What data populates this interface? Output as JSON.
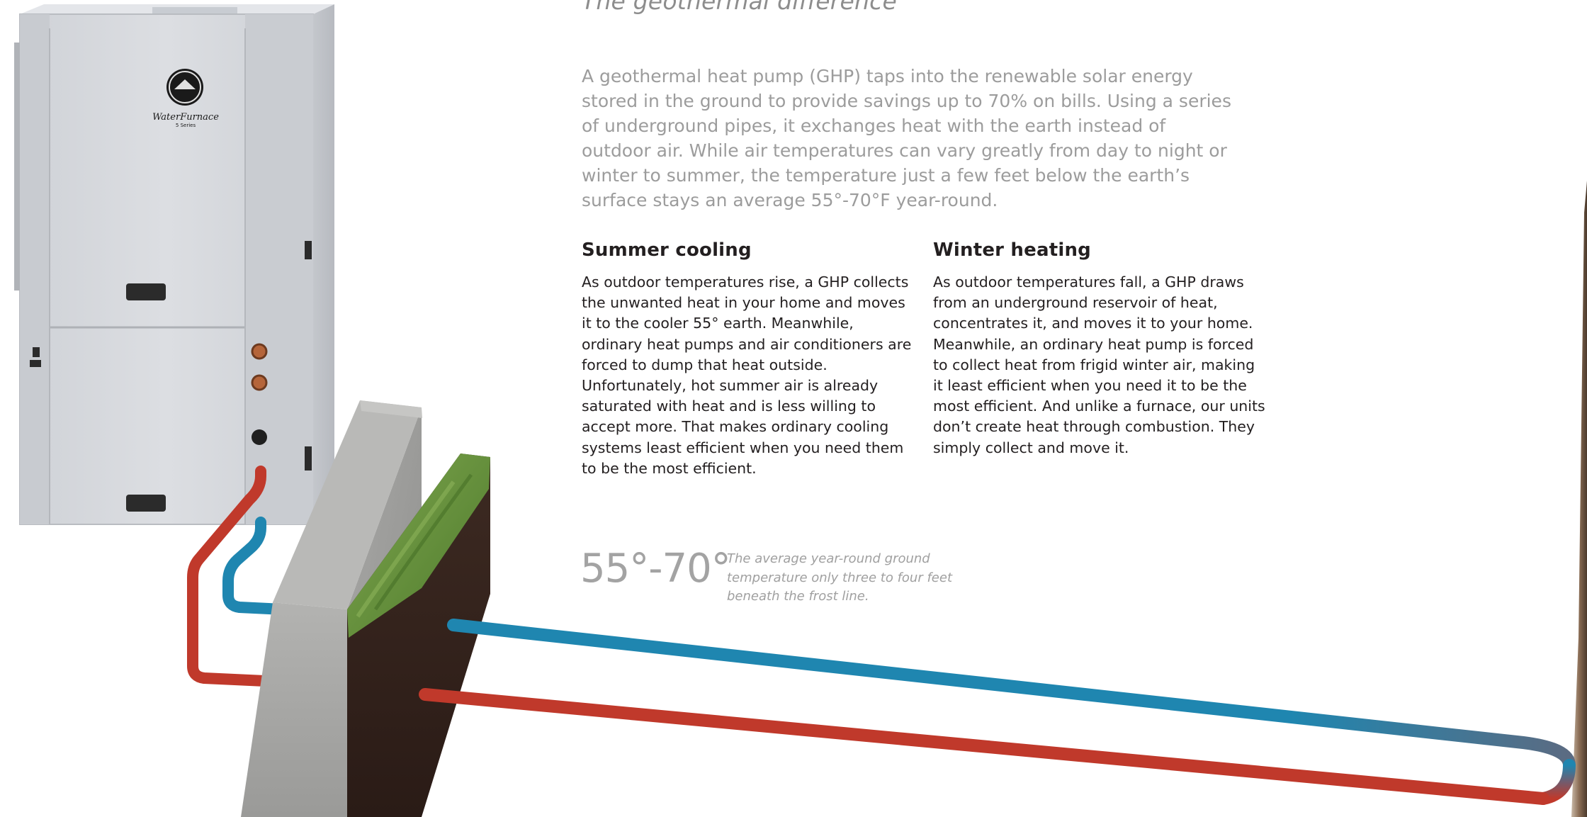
{
  "heading": "The geothermal difference",
  "intro": "A geothermal heat pump (GHP) taps into the renewable solar energy stored in the ground to provide savings up to 70% on bills. Using a series of underground pipes, it exchanges heat with the earth instead of outdoor air. While air temperatures can vary greatly from day to night or winter to summer, the temperature just a few feet below the earth’s surface stays an average 55°-70°F year-round.",
  "summer": {
    "title": "Summer cooling",
    "body": "As outdoor temperatures rise, a GHP collects the unwanted heat in your home and moves it to the cooler 55° earth. Meanwhile, ordinary heat pumps and air conditioners are forced to dump that heat outside. Unfortunately, hot summer air is already saturated with heat and is less willing to accept more. That makes ordinary cooling systems least efficient when you need them to be the most efficient."
  },
  "winter": {
    "title": "Winter heating",
    "body": "As outdoor temperatures fall, a GHP draws from an underground reservoir of heat, concentrates it, and moves it to your home. Meanwhile, an ordinary heat pump is forced to collect heat from frigid winter air, making it least efficient when you need it to be the most efficient. And unlike a furnace, our units don’t create heat through combustion. They simply collect and move it."
  },
  "stat": {
    "value": "55°-70°",
    "note": "The average year-round ground temperature only three to four feet beneath the frost line."
  },
  "logo": {
    "brand": "WaterFurnace",
    "series": "5 Series"
  },
  "colors": {
    "pipe_red": "#c0392b",
    "pipe_blue": "#1f86b0",
    "unit_gray": "#d6d8dc",
    "grass": "#5f8a3a",
    "soil": "#3a2620",
    "stone": "#9c9c9c"
  }
}
